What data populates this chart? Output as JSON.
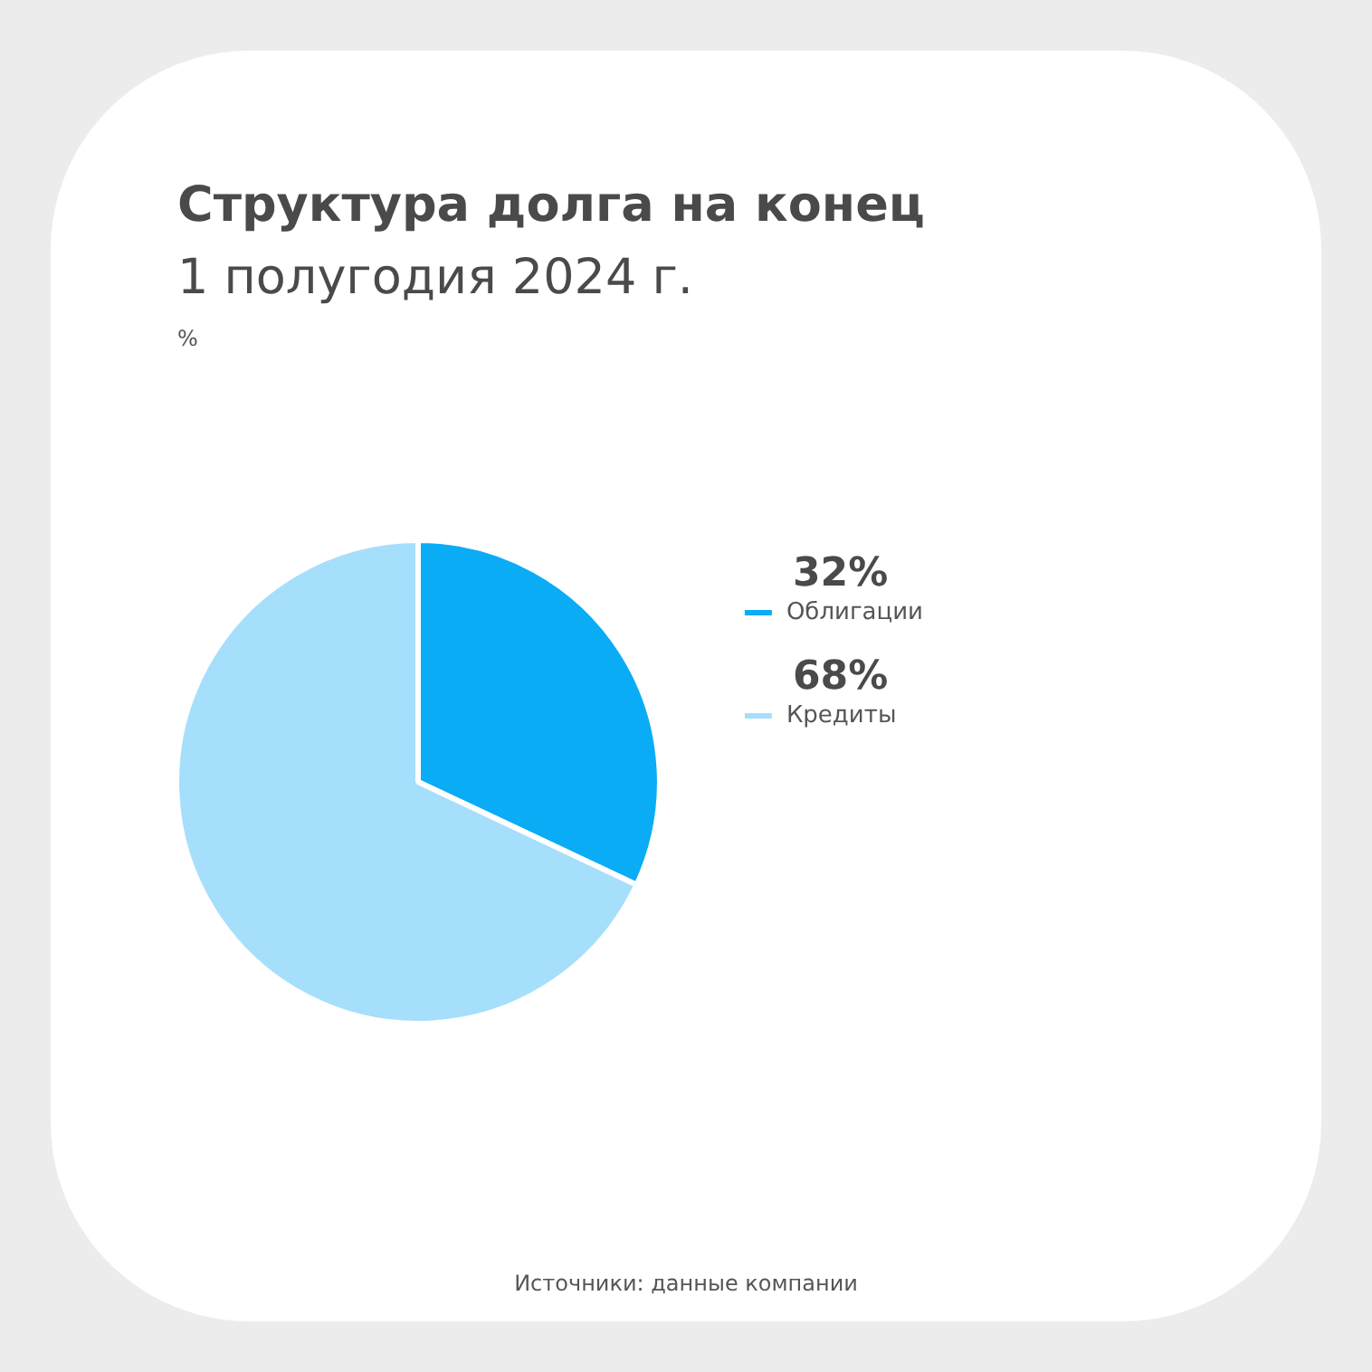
{
  "chart_data": {
    "type": "pie",
    "title": "Структура долга на конец",
    "subtitle": "1 полугодия 2024 г.",
    "annotations": [
      "%",
      "Источники: данные компании"
    ],
    "categories": [
      "Облигации",
      "Кредиты"
    ],
    "values": [
      32,
      68
    ],
    "value_labels": [
      "32%",
      "68%"
    ],
    "colors": [
      "#0aacf5",
      "#a6dffb"
    ],
    "legend": "right"
  }
}
